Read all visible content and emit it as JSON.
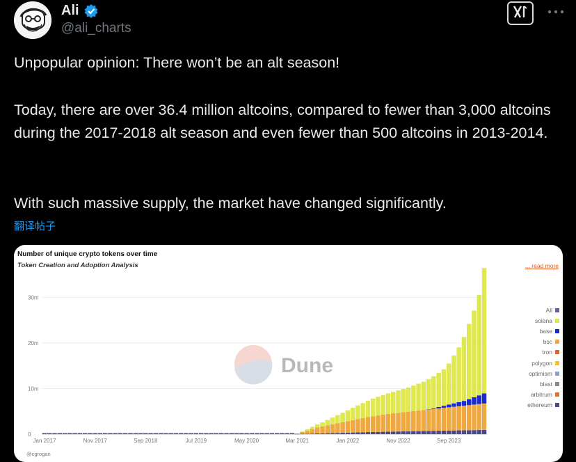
{
  "author": {
    "name": "Ali",
    "handle": "@ali_charts"
  },
  "tweet": {
    "paragraph_1": "Unpopular opinion: There won’t be an alt season!",
    "paragraph_2": "Today, there are over 36.4 million altcoins, compared to fewer than 3,000 altcoins during the 2017-2018 alt season and even fewer than 500 altcoins in 2013-2014.",
    "paragraph_3": "With such massive supply, the market have changed significantly.",
    "translate_label": "翻译帖子"
  },
  "colors": {
    "verified": "#1d9bf0",
    "link": "#1d9bf0",
    "read_more": "#e05a20"
  },
  "icons": {
    "verified": "verified-badge-icon",
    "grok": "grok-icon",
    "more": "more-icon"
  },
  "chart_data": {
    "type": "bar",
    "title": "Number of unique crypto tokens over time",
    "subtitle": "Token Creation and Adoption Analysis",
    "read_more": "... read more",
    "watermark": "Dune",
    "credit": "@cgrogan",
    "x_tick_labels": [
      "Jan 2017",
      "Nov 2017",
      "Sep 2018",
      "Jul 2019",
      "May 2020",
      "Mar 2021",
      "Jan 2022",
      "Nov 2022",
      "Sep 2023"
    ],
    "y_tick_labels": [
      "0",
      "10m",
      "20m",
      "30m"
    ],
    "ylim": [
      0,
      36000000
    ],
    "legend_placement": "right",
    "stack_order": [
      "ethereum",
      "arbitrum",
      "blast",
      "optimism",
      "polygon",
      "tron",
      "bsc",
      "base",
      "solana"
    ],
    "legend": [
      {
        "name": "All",
        "color": "#6b5b9a"
      },
      {
        "name": "solana",
        "color": "#dfe850"
      },
      {
        "name": "base",
        "color": "#1a2bd0"
      },
      {
        "name": "bsc",
        "color": "#f0a840"
      },
      {
        "name": "tron",
        "color": "#e0603a"
      },
      {
        "name": "polygon",
        "color": "#f5c030"
      },
      {
        "name": "optimism",
        "color": "#8aa0c8"
      },
      {
        "name": "blast",
        "color": "#8a8a8a"
      },
      {
        "name": "arbitrum",
        "color": "#e07030"
      },
      {
        "name": "ethereum",
        "color": "#4a4a8a"
      }
    ],
    "x_range_months": [
      "2017-01",
      "2024-04"
    ],
    "series_monthly_from_2021_03": {
      "ethereum": [
        0.05,
        0.07,
        0.09,
        0.12,
        0.15,
        0.18,
        0.21,
        0.24,
        0.27,
        0.3,
        0.33,
        0.36,
        0.39,
        0.42,
        0.45,
        0.47,
        0.5,
        0.52,
        0.55,
        0.57,
        0.59,
        0.61,
        0.63,
        0.65,
        0.67,
        0.69,
        0.71,
        0.73,
        0.75,
        0.77,
        0.79,
        0.81,
        0.83,
        0.85,
        0.87,
        0.89,
        0.91,
        0.93
      ],
      "bsc": [
        0.1,
        0.4,
        0.7,
        1.0,
        1.3,
        1.5,
        1.7,
        1.9,
        2.1,
        2.3,
        2.5,
        2.7,
        2.9,
        3.1,
        3.3,
        3.45,
        3.6,
        3.75,
        3.9,
        4.0,
        4.1,
        4.2,
        4.3,
        4.4,
        4.5,
        4.6,
        4.7,
        4.8,
        4.9,
        5.0,
        5.1,
        5.2,
        5.3,
        5.4,
        5.5,
        5.6,
        5.7,
        5.8
      ],
      "base": [
        0,
        0,
        0,
        0,
        0,
        0,
        0,
        0,
        0,
        0,
        0,
        0,
        0,
        0,
        0,
        0,
        0,
        0,
        0,
        0,
        0,
        0,
        0,
        0,
        0,
        0,
        0.05,
        0.15,
        0.3,
        0.45,
        0.6,
        0.75,
        0.9,
        1.05,
        1.3,
        1.6,
        1.9,
        2.2
      ],
      "solana": [
        0,
        0.1,
        0.3,
        0.5,
        0.7,
        0.9,
        1.2,
        1.5,
        1.8,
        2.1,
        2.4,
        2.7,
        3.0,
        3.3,
        3.6,
        3.9,
        4.1,
        4.3,
        4.5,
        4.7,
        4.9,
        5.1,
        5.3,
        5.6,
        5.9,
        6.2,
        6.6,
        7.0,
        7.5,
        8.0,
        9.0,
        10.5,
        12.0,
        14.0,
        16.5,
        19.0,
        22.0,
        27.5
      ]
    },
    "value_unit": "millions"
  }
}
